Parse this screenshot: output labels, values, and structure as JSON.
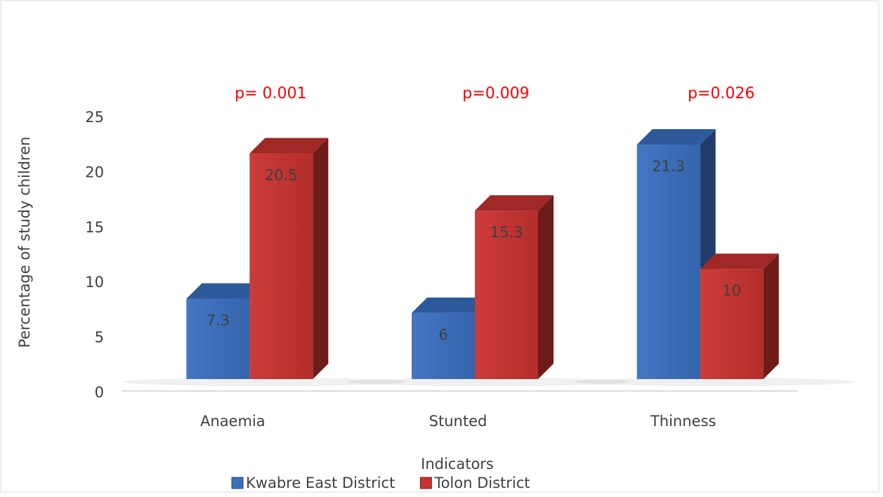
{
  "chart_data": {
    "type": "bar3d",
    "categories": [
      "Anaemia",
      "Stunted",
      "Thinness"
    ],
    "x_label": "Indicators",
    "y_label": "Percentage of study children",
    "annotations": [
      "p= 0.001",
      "p=0.009",
      "p=0.026"
    ],
    "series": [
      {
        "name": "Kwabre East District",
        "color": "#3a6fc0",
        "values": [
          7.3,
          6,
          21.3
        ]
      },
      {
        "name": "Tolon District",
        "color": "#c8322f",
        "values": [
          20.5,
          15.3,
          10
        ]
      }
    ],
    "ylim": [
      0,
      25
    ],
    "yticks": [
      0,
      5,
      10,
      15,
      20,
      25
    ],
    "grid": false,
    "legend": "bottom"
  }
}
